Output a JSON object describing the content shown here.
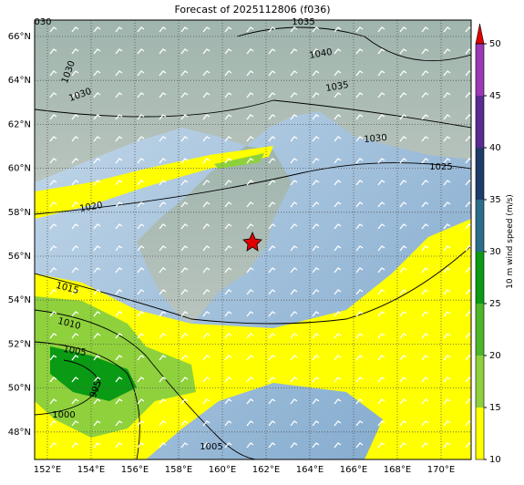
{
  "title": "Forecast of 2025112806 (f036)",
  "lat_labels": [
    "66°N",
    "64°N",
    "62°N",
    "60°N",
    "58°N",
    "56°N",
    "54°N",
    "52°N",
    "50°N",
    "48°N"
  ],
  "lon_labels": [
    "152°E",
    "154°E",
    "156°E",
    "158°E",
    "160°E",
    "162°E",
    "164°E",
    "166°E",
    "168°E",
    "170°E"
  ],
  "contour_labels": [
    "030",
    "1035",
    "1040",
    "1030",
    "1030",
    "1035",
    "1030",
    "1025",
    "1020",
    "1015",
    "1010",
    "1005",
    "995",
    "1000",
    "1005"
  ],
  "colorbar": {
    "label": "10 m wind speed (m/s)",
    "ticks": [
      10,
      15,
      20,
      25,
      30,
      35,
      40,
      45,
      50
    ],
    "colors": [
      "#ffff00",
      "#8ed13c",
      "#4db52a",
      "#0a9a14",
      "#2a6e8c",
      "#1e3b6a",
      "#5b2a92",
      "#9b38b4"
    ],
    "extend_color": "#e00000"
  }
}
